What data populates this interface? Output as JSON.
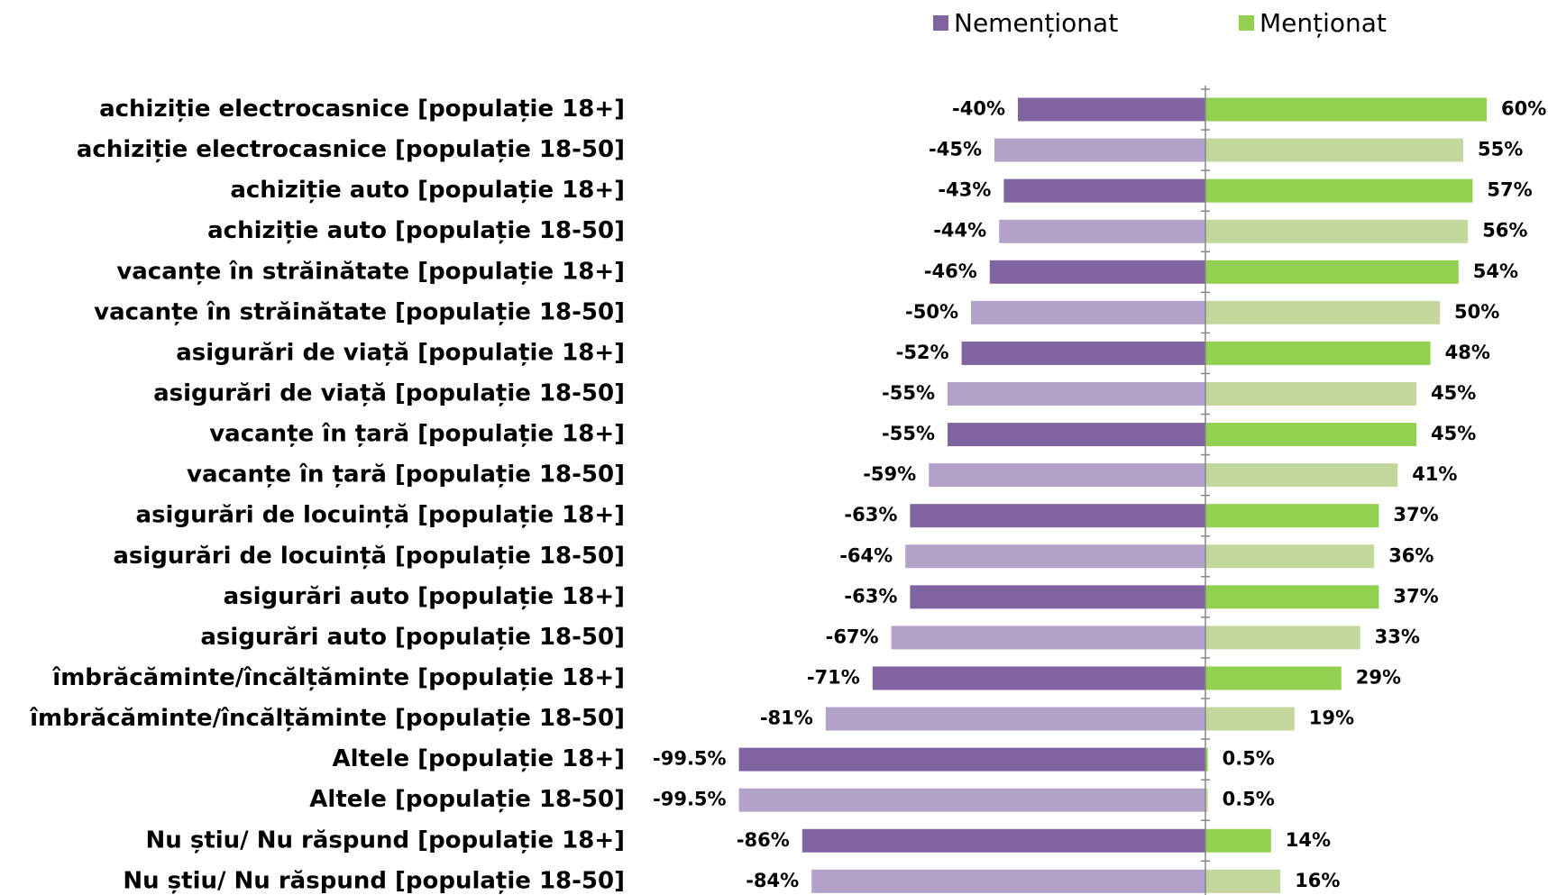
{
  "chart_data": {
    "type": "diverging-bar",
    "categories": [
      "achiziție electrocasnice [populație 18+]",
      "achiziție electrocasnice [populație 18-50]",
      "achiziție auto [populație 18+]",
      "achiziție auto [populație 18-50]",
      "vacanțe în străinătate [populație 18+]",
      "vacanțe în străinătate [populație 18-50]",
      "asigurări  de viață [populație 18+]",
      "asigurări  de viață [populație 18-50]",
      "vacanțe în țară [populație 18+]",
      "vacanțe în țară [populație 18-50]",
      "asigurări de locuință [populație 18+]",
      "asigurări de locuință [populație 18-50]",
      "asigurări auto [populație 18+]",
      "asigurări auto [populație 18-50]",
      "îmbrăcăminte/încălțăminte [populație 18+]",
      "îmbrăcăminte/încălțăminte [populație 18-50]",
      "Altele [populație 18+]",
      "Altele [populație 18-50]",
      "Nu știu/ Nu răspund [populație 18+]",
      "Nu știu/ Nu răspund [populație 18-50]"
    ],
    "series": [
      {
        "name": "Nemenționat",
        "colors": [
          "#8064a2",
          "#b3a2c7",
          "#8064a2",
          "#b3a2c7",
          "#8064a2",
          "#b3a2c7",
          "#8064a2",
          "#b3a2c7",
          "#8064a2",
          "#b3a2c7",
          "#8064a2",
          "#b3a2c7",
          "#8064a2",
          "#b3a2c7",
          "#8064a2",
          "#b3a2c7",
          "#8064a2",
          "#b3a2c7",
          "#8064a2",
          "#b3a2c7"
        ],
        "values": [
          -40,
          -45,
          -43,
          -44,
          -46,
          -50,
          -52,
          -55,
          -55,
          -59,
          -63,
          -64,
          -63,
          -67,
          -71,
          -81,
          -99.5,
          -99.5,
          -86,
          -84
        ],
        "value_labels": [
          "-40%",
          "-45%",
          "-43%",
          "-44%",
          "-46%",
          "-50%",
          "-52%",
          "-55%",
          "-55%",
          "-59%",
          "-63%",
          "-64%",
          "-63%",
          "-67%",
          "-71%",
          "-81%",
          "-99.5%",
          "-99.5%",
          "-86%",
          "-84%"
        ]
      },
      {
        "name": "Menționat",
        "colors": [
          "#92d050",
          "#c3d69b",
          "#92d050",
          "#c3d69b",
          "#92d050",
          "#c3d69b",
          "#92d050",
          "#c3d69b",
          "#92d050",
          "#c3d69b",
          "#92d050",
          "#c3d69b",
          "#92d050",
          "#c3d69b",
          "#92d050",
          "#c3d69b",
          "#92d050",
          "#c3d69b",
          "#92d050",
          "#c3d69b"
        ],
        "values": [
          60,
          55,
          57,
          56,
          54,
          50,
          48,
          45,
          45,
          41,
          37,
          36,
          37,
          33,
          29,
          19,
          0.5,
          0.5,
          14,
          16
        ],
        "value_labels": [
          "60%",
          "55%",
          "57%",
          "56%",
          "54%",
          "50%",
          "48%",
          "45%",
          "45%",
          "41%",
          "37%",
          "36%",
          "37%",
          "33%",
          "29%",
          "19%",
          "0.5%",
          "0.5%",
          "14%",
          "16%"
        ]
      }
    ],
    "xlim": [
      -100,
      60
    ],
    "legend": "top"
  }
}
